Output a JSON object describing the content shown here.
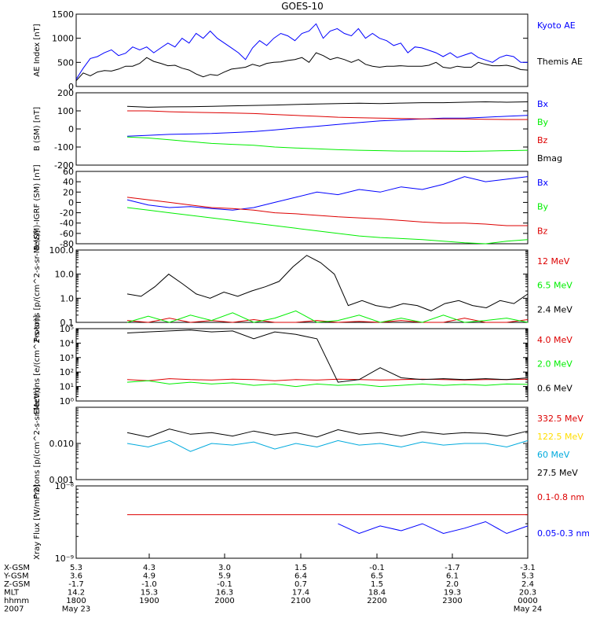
{
  "title": "GOES-10",
  "colors": {
    "black": "#000000",
    "blue": "#0000ff",
    "red": "#dd0000",
    "green": "#00ee00",
    "yellow": "#ffdd00",
    "cyan": "#00aadd"
  },
  "chart_data": [
    {
      "type": "line",
      "id": "ae",
      "ylabel": "AE Index [nT]",
      "ylim": [
        0,
        1500
      ],
      "yticks": [
        0,
        500,
        1000,
        1500
      ],
      "yscale": "linear",
      "series": [
        {
          "name": "Kyoto AE",
          "color": "blue",
          "values": [
            150,
            380,
            580,
            620,
            700,
            760,
            640,
            690,
            820,
            760,
            820,
            700,
            800,
            900,
            820,
            1000,
            900,
            1100,
            1000,
            1150,
            1000,
            900,
            800,
            700,
            560,
            800,
            950,
            850,
            1000,
            1100,
            1050,
            950,
            1100,
            1150,
            1300,
            1000,
            1150,
            1200,
            1100,
            1050,
            1200,
            1000,
            1100,
            1000,
            950,
            850,
            900,
            700,
            820,
            800,
            750,
            700,
            620,
            700,
            600,
            650,
            700,
            600,
            550,
            500,
            600,
            650,
            620,
            500,
            500
          ]
        },
        {
          "name": "Themis AE",
          "color": "black",
          "values": [
            120,
            280,
            220,
            300,
            330,
            320,
            360,
            420,
            420,
            480,
            600,
            520,
            480,
            430,
            440,
            380,
            340,
            260,
            200,
            250,
            230,
            300,
            360,
            380,
            400,
            460,
            420,
            480,
            500,
            510,
            540,
            560,
            600,
            500,
            700,
            640,
            560,
            600,
            560,
            500,
            560,
            460,
            420,
            400,
            420,
            420,
            430,
            420,
            420,
            420,
            440,
            500,
            400,
            380,
            420,
            400,
            400,
            500,
            460,
            430,
            430,
            440,
            410,
            350,
            340
          ]
        }
      ]
    },
    {
      "type": "line",
      "id": "b",
      "ylabel": "B (SM) [nT]",
      "ylim": [
        -200,
        200
      ],
      "yticks": [
        -200,
        -100,
        0,
        100,
        200
      ],
      "yscale": "linear",
      "series": [
        {
          "name": "Bx",
          "color": "blue",
          "values": [
            -40,
            -35,
            -30,
            -28,
            -25,
            -20,
            -15,
            -5,
            5,
            15,
            25,
            35,
            45,
            50,
            55,
            60,
            60,
            65,
            70,
            75
          ]
        },
        {
          "name": "By",
          "color": "green",
          "values": [
            -45,
            -50,
            -60,
            -70,
            -80,
            -85,
            -90,
            -100,
            -105,
            -110,
            -115,
            -118,
            -120,
            -122,
            -122,
            -123,
            -124,
            -122,
            -120,
            -118
          ]
        },
        {
          "name": "Bz",
          "color": "red",
          "values": [
            100,
            100,
            95,
            92,
            90,
            88,
            85,
            80,
            75,
            70,
            65,
            62,
            60,
            58,
            55,
            55,
            55,
            53,
            52,
            52
          ]
        },
        {
          "name": "Bmag",
          "color": "black",
          "values": [
            125,
            120,
            122,
            123,
            125,
            128,
            130,
            132,
            135,
            138,
            140,
            142,
            140,
            143,
            145,
            145,
            148,
            150,
            148,
            150
          ]
        }
      ]
    },
    {
      "type": "line",
      "id": "bigrf",
      "ylabel": "B (SM)-IGRF (SM) [nT]",
      "ylim": [
        -80,
        60
      ],
      "yticks": [
        -80,
        -60,
        -40,
        -20,
        0,
        20,
        40,
        60
      ],
      "yscale": "linear",
      "series": [
        {
          "name": "Bx",
          "color": "blue",
          "values": [
            5,
            -5,
            -10,
            -8,
            -12,
            -15,
            -10,
            0,
            10,
            20,
            15,
            25,
            20,
            30,
            25,
            35,
            50,
            40,
            45,
            50
          ]
        },
        {
          "name": "By",
          "color": "green",
          "values": [
            -10,
            -15,
            -20,
            -25,
            -30,
            -35,
            -40,
            -45,
            -50,
            -55,
            -60,
            -65,
            -68,
            -70,
            -72,
            -75,
            -78,
            -80,
            -75,
            -72
          ]
        },
        {
          "name": "Bz",
          "color": "red",
          "values": [
            10,
            5,
            0,
            -5,
            -10,
            -12,
            -15,
            -20,
            -22,
            -25,
            -28,
            -30,
            -32,
            -35,
            -38,
            -40,
            -40,
            -42,
            -45,
            -45
          ]
        }
      ]
    },
    {
      "type": "line",
      "id": "protons1",
      "ylabel": "Protons [p/(cm^2-s-sr-MeV)]",
      "ylim": [
        0.1,
        100
      ],
      "yticks": [
        0.1,
        1.0,
        10.0,
        100.0
      ],
      "ytick_labels": [
        "0.1",
        "1.0",
        "10.0",
        "100.0"
      ],
      "yscale": "log",
      "series": [
        {
          "name": "12 MeV",
          "color": "red",
          "values": [
            0.12,
            0.1,
            0.15,
            0.1,
            0.12,
            0.1,
            0.13,
            0.1,
            0.1,
            0.12,
            0.1,
            0.11,
            0.1,
            0.12,
            0.1,
            0.1,
            0.15,
            0.1,
            0.1,
            0.13
          ]
        },
        {
          "name": "6.5 MeV",
          "color": "green",
          "values": [
            0.1,
            0.18,
            0.1,
            0.2,
            0.12,
            0.25,
            0.1,
            0.15,
            0.3,
            0.1,
            0.12,
            0.2,
            0.1,
            0.15,
            0.1,
            0.2,
            0.1,
            0.12,
            0.15,
            0.1
          ]
        },
        {
          "name": "2.4 MeV",
          "color": "black",
          "values": [
            1.5,
            1.2,
            3,
            10,
            4,
            1.5,
            1.0,
            1.8,
            1.2,
            2,
            3,
            5,
            20,
            60,
            30,
            10,
            0.5,
            0.8,
            0.5,
            0.4,
            0.6,
            0.5,
            0.3,
            0.6,
            0.8,
            0.5,
            0.4,
            0.8,
            0.6,
            1.5
          ]
        }
      ]
    },
    {
      "type": "line",
      "id": "electrons",
      "ylabel": "Electrons [e/(cm^2-s-sr)]",
      "ylim": [
        1,
        100000
      ],
      "yticks": [
        1,
        10,
        100,
        1000,
        10000,
        100000
      ],
      "ytick_labels": [
        "10⁰",
        "10¹",
        "10²",
        "10³",
        "10⁴",
        "10⁵"
      ],
      "yscale": "log",
      "series": [
        {
          "name": "4.0 MeV",
          "color": "red",
          "values": [
            30,
            25,
            35,
            30,
            28,
            32,
            30,
            25,
            30,
            28,
            32,
            30,
            28,
            30,
            32,
            30,
            28,
            30,
            30,
            32
          ]
        },
        {
          "name": "2.0 MeV",
          "color": "green",
          "values": [
            20,
            25,
            15,
            20,
            15,
            18,
            12,
            15,
            10,
            15,
            12,
            14,
            10,
            12,
            15,
            12,
            14,
            12,
            15,
            14
          ]
        },
        {
          "name": "0.6 MeV",
          "color": "black",
          "values": [
            50000,
            60000,
            70000,
            80000,
            60000,
            70000,
            20000,
            60000,
            40000,
            20000,
            20,
            30,
            200,
            40,
            30,
            35,
            30,
            35,
            30,
            40
          ]
        }
      ]
    },
    {
      "type": "line",
      "id": "protons2",
      "ylabel": "Protons [p/(cm^2-s-sr-MeV)]",
      "ylim": [
        0.001,
        0.1
      ],
      "yticks": [
        0.001,
        0.01
      ],
      "ytick_labels": [
        "0.001",
        "0.010"
      ],
      "yscale": "log",
      "series": [
        {
          "name": "332.5 MeV",
          "color": "red",
          "values": []
        },
        {
          "name": "122.5 MeV",
          "color": "yellow",
          "values": []
        },
        {
          "name": "60 MeV",
          "color": "cyan",
          "values": [
            0.01,
            0.008,
            0.012,
            0.006,
            0.01,
            0.009,
            0.011,
            0.007,
            0.01,
            0.008,
            0.012,
            0.009,
            0.01,
            0.008,
            0.011,
            0.009,
            0.01,
            0.01,
            0.008,
            0.012
          ]
        },
        {
          "name": "27.5 MeV",
          "color": "black",
          "values": [
            0.02,
            0.015,
            0.025,
            0.018,
            0.02,
            0.016,
            0.022,
            0.017,
            0.02,
            0.015,
            0.024,
            0.018,
            0.02,
            0.016,
            0.021,
            0.018,
            0.02,
            0.019,
            0.016,
            0.022
          ]
        }
      ]
    },
    {
      "type": "line",
      "id": "xray",
      "ylabel": "Xray Flux [W/m^2]",
      "ylim": [
        1e-09,
        1e-08
      ],
      "yticks": [
        1e-09,
        1e-08
      ],
      "ytick_labels": [
        "10⁻⁹",
        "10⁻⁸"
      ],
      "yscale": "log",
      "series": [
        {
          "name": "0.1-0.8 nm",
          "color": "red",
          "values": [
            4e-09,
            4e-09,
            4e-09,
            4e-09,
            4e-09,
            4e-09,
            4e-09,
            4e-09,
            4e-09,
            4e-09,
            4e-09,
            4e-09,
            4e-09,
            4e-09,
            4e-09,
            4e-09,
            4e-09,
            4e-09,
            4e-09,
            4e-09
          ]
        },
        {
          "name": "0.05-0.3 nm",
          "color": "blue",
          "values": [
            null,
            null,
            null,
            null,
            null,
            null,
            null,
            null,
            null,
            null,
            3e-09,
            2.2e-09,
            2.8e-09,
            2.4e-09,
            3e-09,
            2.2e-09,
            2.6e-09,
            3.2e-09,
            2.2e-09,
            2.8e-09
          ]
        }
      ]
    }
  ],
  "x_axis": {
    "row_labels": [
      "X-GSM",
      "Y-GSM",
      "Z-GSM",
      "MLT",
      "hhmm",
      "2007"
    ],
    "columns": [
      [
        "5.3",
        "3.6",
        "-1.7",
        "14.2",
        "1800",
        "May 23"
      ],
      [
        "4.3",
        "4.9",
        "-1.0",
        "15.3",
        "1900",
        ""
      ],
      [
        "3.0",
        "5.9",
        "-0.1",
        "16.3",
        "2000",
        ""
      ],
      [
        "1.5",
        "6.4",
        "0.7",
        "17.4",
        "2100",
        ""
      ],
      [
        "-0.1",
        "6.5",
        "1.5",
        "18.4",
        "2200",
        ""
      ],
      [
        "-1.7",
        "6.1",
        "2.0",
        "19.3",
        "2300",
        ""
      ],
      [
        "-3.1",
        "5.3",
        "2.4",
        "20.3",
        "0000",
        "May 24"
      ]
    ]
  }
}
